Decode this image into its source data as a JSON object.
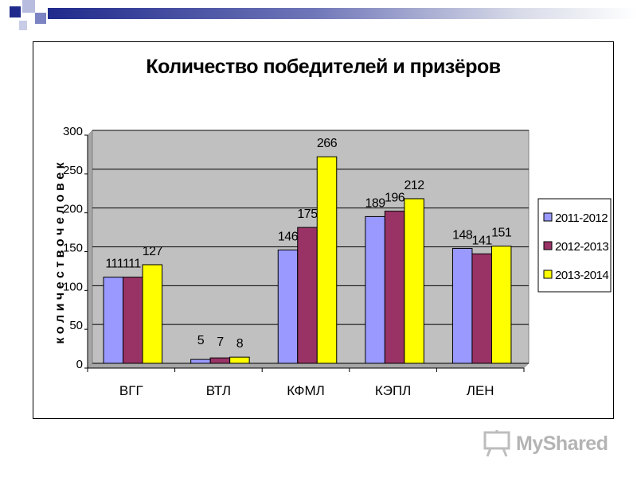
{
  "colors": {
    "series": [
      "#9999ff",
      "#993366",
      "#ffff00"
    ],
    "plot_bg": "#c0c0c0",
    "deco_dark": "#1f2a8c"
  },
  "watermark": {
    "text": "MyShared",
    "icon": "presentation-board-icon"
  },
  "chart_data": {
    "type": "bar",
    "title": "Количество победителей и призёров",
    "ylabel": "к о л и ч е с т в о   ч е л о в е к",
    "xlabel": "",
    "categories": [
      "ВГГ",
      "ВТЛ",
      "КФМЛ",
      "КЭПЛ",
      "ЛЕН"
    ],
    "ylim": [
      0,
      300
    ],
    "yticks": [
      0,
      50,
      100,
      150,
      200,
      250,
      300
    ],
    "grid": true,
    "legend": "right",
    "series": [
      {
        "name": "2011-2012",
        "values": [
          111,
          5,
          146,
          189,
          148
        ]
      },
      {
        "name": "2012-2013",
        "values": [
          111,
          7,
          175,
          196,
          141
        ]
      },
      {
        "name": "2013-2014",
        "values": [
          127,
          8,
          266,
          212,
          151
        ]
      }
    ],
    "data_labels": [
      {
        "category": "ВГГ",
        "text": "111111"
      },
      {
        "category": "ВГГ",
        "text": "127"
      },
      {
        "category": "ВТЛ",
        "text": "5"
      },
      {
        "category": "ВТЛ",
        "text": "7"
      },
      {
        "category": "ВТЛ",
        "text": "8"
      },
      {
        "category": "КФМЛ",
        "text": "146"
      },
      {
        "category": "КФМЛ",
        "text": "175"
      },
      {
        "category": "КФМЛ",
        "text": "266"
      },
      {
        "category": "КЭПЛ",
        "text": "189"
      },
      {
        "category": "КЭПЛ",
        "text": "196"
      },
      {
        "category": "КЭПЛ",
        "text": "212"
      },
      {
        "category": "ЛЕН",
        "text": "148"
      },
      {
        "category": "ЛЕН",
        "text": "141"
      },
      {
        "category": "ЛЕН",
        "text": "151"
      }
    ]
  }
}
